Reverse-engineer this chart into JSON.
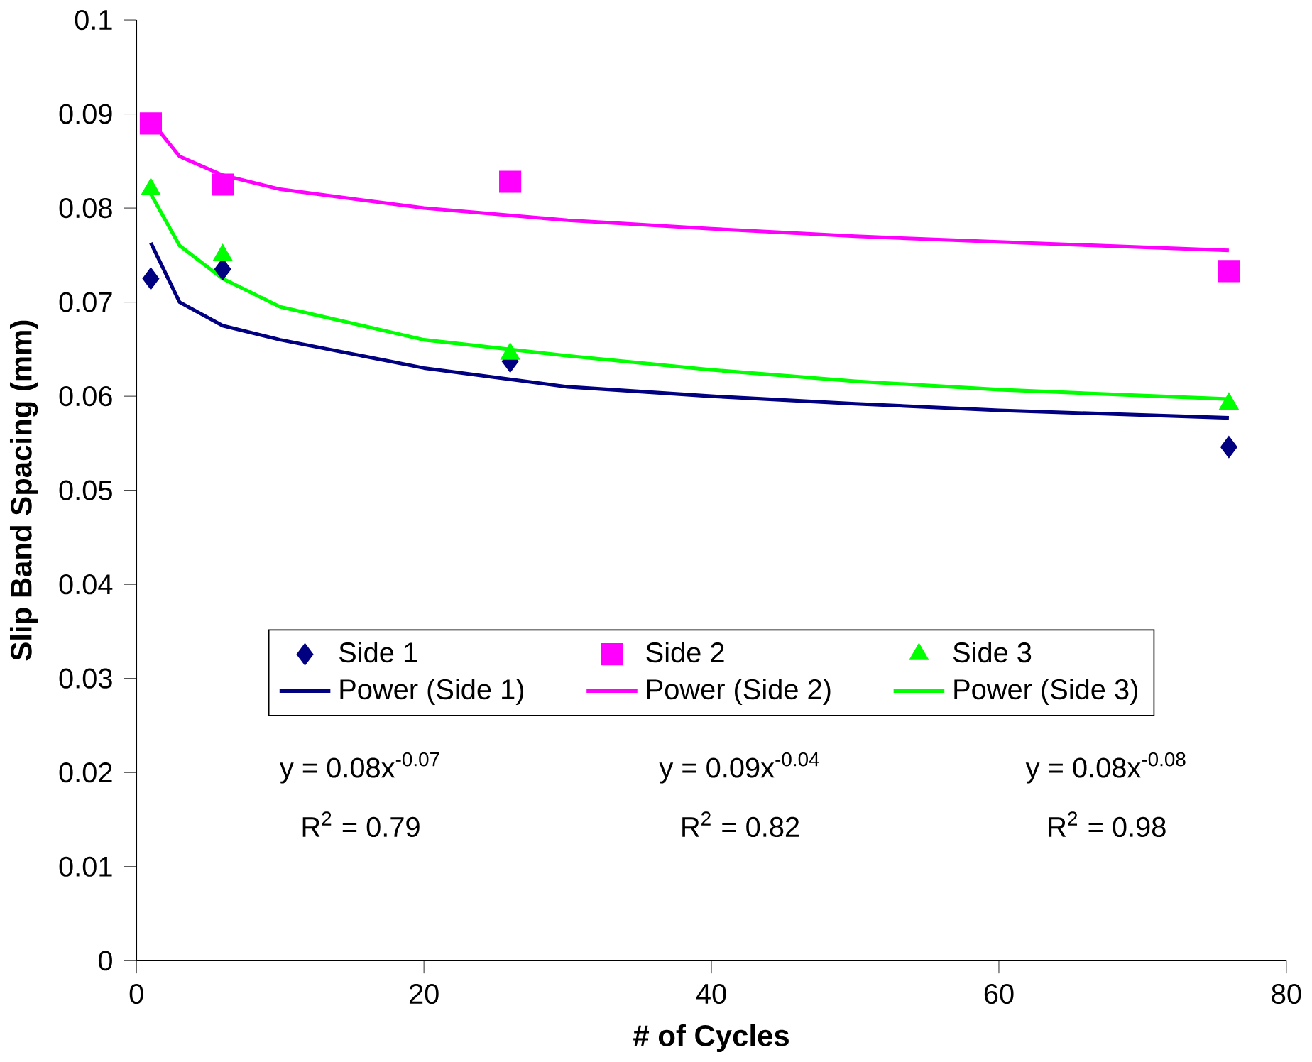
{
  "chart_data": {
    "type": "scatter",
    "xlabel": "# of Cycles",
    "ylabel": "Slip Band Spacing (mm)",
    "x": [
      1,
      6,
      26,
      76
    ],
    "series": [
      {
        "name": "Side 1",
        "color": "#000080",
        "marker": "diamond",
        "values": [
          0.0725,
          0.0735,
          0.0637,
          0.0546
        ]
      },
      {
        "name": "Side 2",
        "color": "#ff00ff",
        "marker": "square",
        "values": [
          0.089,
          0.0825,
          0.0828,
          0.0733
        ]
      },
      {
        "name": "Side 3",
        "color": "#00ff00",
        "marker": "triangle",
        "values": [
          0.082,
          0.075,
          0.0645,
          0.0592
        ]
      },
      {
        "name": "Power (Side 1)",
        "type": "line",
        "color": "#000080",
        "x": [
          1,
          3,
          6,
          10,
          20,
          30,
          40,
          50,
          60,
          76
        ],
        "values": [
          0.0763,
          0.07,
          0.0675,
          0.066,
          0.063,
          0.061,
          0.06,
          0.0592,
          0.0585,
          0.0577
        ]
      },
      {
        "name": "Power (Side 2)",
        "type": "line",
        "color": "#ff00ff",
        "x": [
          1,
          3,
          6,
          10,
          20,
          30,
          40,
          50,
          60,
          76
        ],
        "values": [
          0.0893,
          0.0855,
          0.0835,
          0.082,
          0.08,
          0.0787,
          0.0778,
          0.077,
          0.0764,
          0.0755
        ]
      },
      {
        "name": "Power (Side 3)",
        "type": "line",
        "color": "#00ff00",
        "x": [
          1,
          3,
          6,
          10,
          20,
          30,
          40,
          50,
          60,
          76
        ],
        "values": [
          0.0815,
          0.076,
          0.0725,
          0.0695,
          0.066,
          0.0643,
          0.0628,
          0.0616,
          0.0607,
          0.0597
        ]
      }
    ],
    "xlim": [
      0,
      80
    ],
    "xticks": [
      0,
      20,
      40,
      60,
      80
    ],
    "ylim": [
      0,
      0.1
    ],
    "yticks": [
      0,
      0.01,
      0.02,
      0.03,
      0.04,
      0.05,
      0.06,
      0.07,
      0.08,
      0.09,
      0.1
    ],
    "legend": "bottom",
    "annotations": [
      "y = 0.08x$^{-0.07}$",
      "R$^{2}$ = 0.79",
      "y = 0.09x$^{-0.04}$",
      "R$^{2}$ = 0.82",
      "y = 0.08x$^{-0.08}$",
      "R$^{2}$ = 0.98"
    ]
  }
}
